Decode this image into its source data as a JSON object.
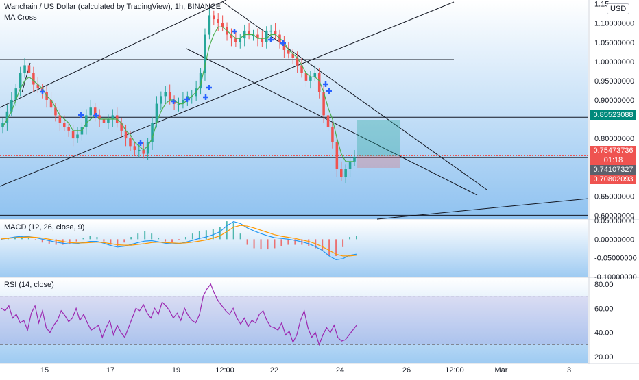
{
  "header": {
    "title": "Wanchain / US Dollar (calculated by TradingView), 1h, BINANCE",
    "indicator": "MA Cross",
    "currency": "USD"
  },
  "price_tags": {
    "ticker": {
      "value": "0.85523088",
      "color": "#00897b"
    },
    "last": {
      "value": "0.75473736",
      "color": "#ef5350"
    },
    "countdown": {
      "value": "01:18",
      "color": "#ef5350"
    },
    "cursor": {
      "value": "0.74107327",
      "color": "#5d606b"
    },
    "stop": {
      "value": "0.70802093",
      "color": "#ef5350"
    }
  },
  "colors": {
    "up": "#26a69a",
    "down": "#ef5350",
    "ma": "#4caf50",
    "cross": "#2962ff",
    "macd": "#2196f3",
    "signal": "#ff9800",
    "rsi": "#9c27b0",
    "band": "#7e57c2"
  },
  "chart_data": [
    {
      "type": "candlestick",
      "pane": "price",
      "title": "Wanchain / US Dollar (calculated by TradingView), 1h, BINANCE",
      "x_ticks": [
        "15",
        "17",
        "19",
        "12:00",
        "22",
        "24",
        "26",
        "12:00",
        "Mar",
        "3"
      ],
      "y_ticks": [
        "1.15",
        "1.10000000",
        "1.05000000",
        "1.00000000",
        "0.95000000",
        "0.90000000",
        "0.80000000",
        "0.70000000",
        "0.65000000",
        "0.60000000"
      ],
      "ylim": [
        0.59,
        1.16
      ],
      "close_series": [
        0.84,
        0.87,
        0.9,
        0.93,
        0.97,
        0.99,
        0.97,
        0.94,
        0.93,
        0.92,
        0.9,
        0.88,
        0.86,
        0.84,
        0.83,
        0.82,
        0.8,
        0.81,
        0.83,
        0.86,
        0.88,
        0.86,
        0.85,
        0.84,
        0.85,
        0.86,
        0.84,
        0.82,
        0.8,
        0.78,
        0.77,
        0.77,
        0.76,
        0.79,
        0.84,
        0.89,
        0.91,
        0.92,
        0.9,
        0.89,
        0.89,
        0.9,
        0.91,
        0.91,
        0.93,
        0.97,
        1.07,
        1.12,
        1.11,
        1.1,
        1.09,
        1.07,
        1.06,
        1.05,
        1.06,
        1.08,
        1.07,
        1.07,
        1.06,
        1.05,
        1.08,
        1.08,
        1.07,
        1.05,
        1.03,
        1.02,
        1.01,
        0.99,
        0.97,
        0.95,
        0.96,
        0.97,
        0.92,
        0.86,
        0.83,
        0.79,
        0.72,
        0.7,
        0.72,
        0.74,
        0.75
      ],
      "moving_average": [
        0.83,
        0.85,
        0.87,
        0.9,
        0.93,
        0.95,
        0.96,
        0.95,
        0.94,
        0.93,
        0.91,
        0.9,
        0.88,
        0.86,
        0.85,
        0.84,
        0.82,
        0.82,
        0.82,
        0.84,
        0.85,
        0.86,
        0.85,
        0.85,
        0.85,
        0.85,
        0.85,
        0.84,
        0.82,
        0.81,
        0.79,
        0.78,
        0.77,
        0.78,
        0.8,
        0.84,
        0.87,
        0.89,
        0.9,
        0.9,
        0.89,
        0.89,
        0.9,
        0.91,
        0.92,
        0.94,
        0.99,
        1.04,
        1.07,
        1.09,
        1.09,
        1.08,
        1.07,
        1.06,
        1.06,
        1.07,
        1.07,
        1.07,
        1.06,
        1.06,
        1.06,
        1.07,
        1.07,
        1.06,
        1.05,
        1.03,
        1.02,
        1.01,
        0.99,
        0.97,
        0.96,
        0.96,
        0.95,
        0.92,
        0.88,
        0.85,
        0.8,
        0.76,
        0.74,
        0.74,
        0.74
      ],
      "horizontal_levels": [
        1.005,
        0.855,
        0.75,
        0.6
      ],
      "legend": "MA Cross"
    },
    {
      "type": "line",
      "pane": "macd",
      "title": "MACD (12, 26, close, 9)",
      "y_ticks": [
        "0.05000000",
        "0.00000000",
        "-0.05000000",
        "-0.10000000"
      ],
      "ylim": [
        -0.1,
        0.05
      ],
      "series": [
        {
          "name": "MACD",
          "values": [
            0.0,
            0.003,
            0.006,
            0.008,
            0.007,
            0.004,
            0.0,
            -0.004,
            -0.008,
            -0.011,
            -0.013,
            -0.012,
            -0.009,
            -0.006,
            -0.006,
            -0.011,
            -0.017,
            -0.021,
            -0.019,
            -0.014,
            -0.009,
            -0.005,
            -0.004,
            -0.007,
            -0.011,
            -0.013,
            -0.012,
            -0.008,
            -0.003,
            0.002,
            0.006,
            0.012,
            0.02,
            0.036,
            0.047,
            0.042,
            0.03,
            0.022,
            0.015,
            0.009,
            0.004,
            0.002,
            0.0,
            -0.003,
            -0.007,
            -0.012,
            -0.02,
            -0.03,
            -0.045,
            -0.055,
            -0.052,
            -0.043,
            -0.04
          ]
        },
        {
          "name": "Signal",
          "values": [
            0.001,
            0.002,
            0.004,
            0.005,
            0.006,
            0.005,
            0.003,
            0.0,
            -0.003,
            -0.006,
            -0.009,
            -0.01,
            -0.01,
            -0.009,
            -0.008,
            -0.009,
            -0.012,
            -0.015,
            -0.016,
            -0.016,
            -0.014,
            -0.012,
            -0.009,
            -0.008,
            -0.009,
            -0.01,
            -0.011,
            -0.01,
            -0.008,
            -0.005,
            -0.002,
            0.003,
            0.009,
            0.02,
            0.032,
            0.037,
            0.035,
            0.03,
            0.024,
            0.018,
            0.012,
            0.008,
            0.005,
            0.002,
            -0.002,
            -0.006,
            -0.012,
            -0.02,
            -0.03,
            -0.04,
            -0.045,
            -0.045,
            -0.043
          ]
        }
      ]
    },
    {
      "type": "line",
      "pane": "rsi",
      "title": "RSI (14, close)",
      "y_ticks": [
        "80.00",
        "60.00",
        "40.00",
        "20.00"
      ],
      "ylim": [
        15,
        85
      ],
      "upper_band": 70,
      "lower_band": 30,
      "series": [
        {
          "name": "RSI",
          "values": [
            60,
            58,
            62,
            52,
            55,
            48,
            50,
            42,
            56,
            62,
            48,
            58,
            44,
            40,
            46,
            50,
            58,
            54,
            49,
            52,
            60,
            50,
            55,
            48,
            42,
            44,
            46,
            36,
            44,
            50,
            38,
            46,
            40,
            36,
            44,
            52,
            60,
            58,
            63,
            56,
            52,
            60,
            55,
            65,
            62,
            58,
            52,
            56,
            50,
            60,
            54,
            50,
            48,
            55,
            70,
            76,
            80,
            72,
            66,
            62,
            58,
            55,
            60,
            52,
            47,
            52,
            45,
            50,
            48,
            55,
            58,
            50,
            45,
            44,
            42,
            48,
            38,
            41,
            32,
            38,
            50,
            58,
            44,
            36,
            40,
            30,
            38,
            44,
            40,
            46,
            36,
            33,
            34,
            38,
            42,
            46
          ]
        }
      ]
    }
  ]
}
